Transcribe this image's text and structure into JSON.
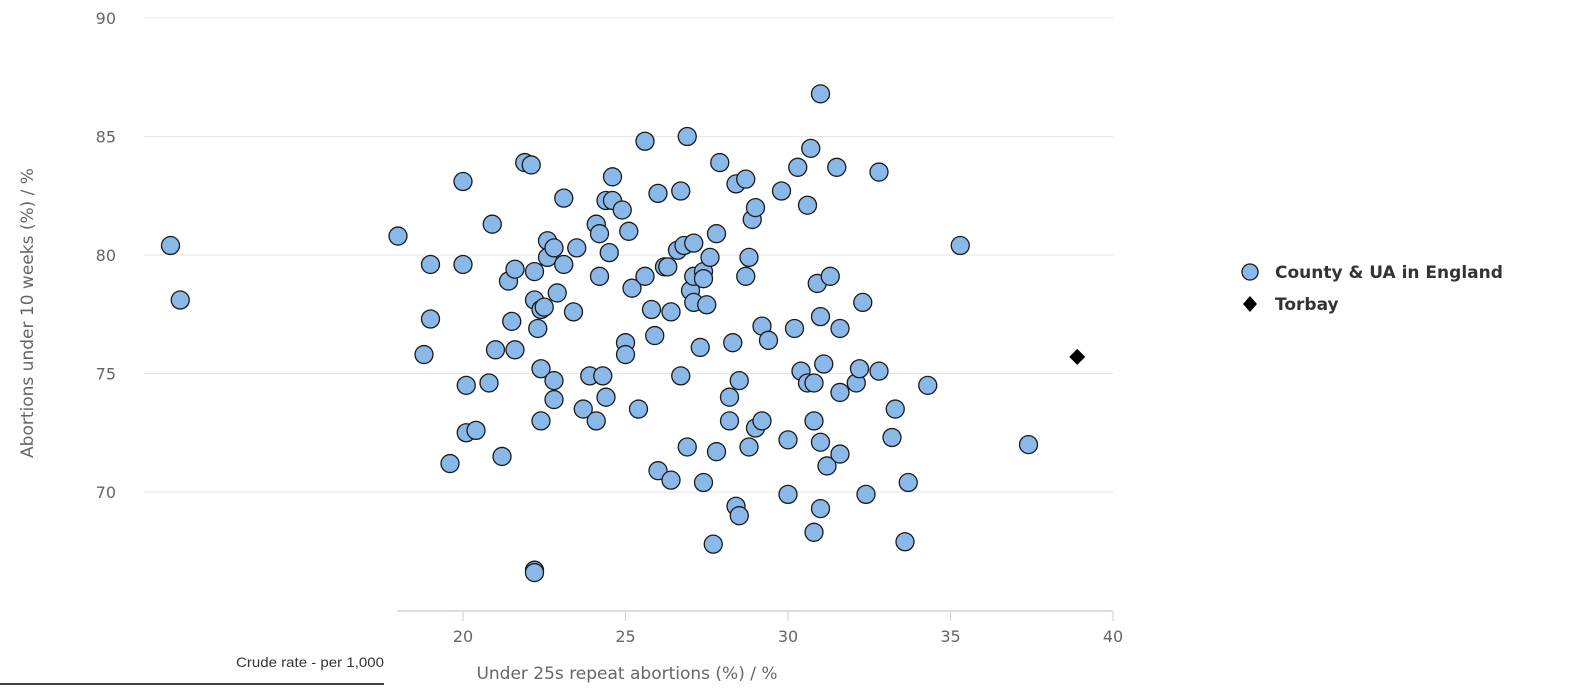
{
  "chart_data": {
    "type": "scatter",
    "title": "",
    "xlabel": "Under 25s repeat abortions (%) / %",
    "ylabel": "Abortions under 10 weeks (%) / %",
    "footnote": "Crude rate - per 1,000",
    "xlim": [
      8,
      40
    ],
    "ylim": [
      65,
      90
    ],
    "x_ticks": [
      "20",
      "25",
      "30",
      "35",
      "40"
    ],
    "y_ticks": [
      "70",
      "75",
      "80",
      "85",
      "90"
    ],
    "grid": "horizontal",
    "legend_position": "right",
    "colors": {
      "county": "#8ab8e8",
      "county_stroke": "#1a1a1a",
      "torbay": "#000000",
      "grid": "#e6e6e6",
      "axis": "#ccd6eb"
    },
    "series": [
      {
        "name": "County & UA in England",
        "marker": "circle",
        "points": [
          [
            11.0,
            80.4
          ],
          [
            11.3,
            78.1
          ],
          [
            18.0,
            80.8
          ],
          [
            18.8,
            75.8
          ],
          [
            19.0,
            77.3
          ],
          [
            19.0,
            79.6
          ],
          [
            19.6,
            71.2
          ],
          [
            20.0,
            83.1
          ],
          [
            20.0,
            79.6
          ],
          [
            20.1,
            72.5
          ],
          [
            20.1,
            74.5
          ],
          [
            20.4,
            72.6
          ],
          [
            20.8,
            74.6
          ],
          [
            20.9,
            81.3
          ],
          [
            21.0,
            76.0
          ],
          [
            21.2,
            71.5
          ],
          [
            21.4,
            78.9
          ],
          [
            21.5,
            77.2
          ],
          [
            21.6,
            76.0
          ],
          [
            21.6,
            79.4
          ],
          [
            21.9,
            83.9
          ],
          [
            22.1,
            83.8
          ],
          [
            22.2,
            78.1
          ],
          [
            22.2,
            79.3
          ],
          [
            22.3,
            76.9
          ],
          [
            22.4,
            77.7
          ],
          [
            22.4,
            73.0
          ],
          [
            22.4,
            75.2
          ],
          [
            22.5,
            77.8
          ],
          [
            22.6,
            80.6
          ],
          [
            22.6,
            79.9
          ],
          [
            22.8,
            80.3
          ],
          [
            22.8,
            74.7
          ],
          [
            22.8,
            73.9
          ],
          [
            22.9,
            78.4
          ],
          [
            23.1,
            79.6
          ],
          [
            23.1,
            82.4
          ],
          [
            23.4,
            77.6
          ],
          [
            23.5,
            80.3
          ],
          [
            23.7,
            73.5
          ],
          [
            23.9,
            74.9
          ],
          [
            24.1,
            81.3
          ],
          [
            24.1,
            73.0
          ],
          [
            24.2,
            80.9
          ],
          [
            24.2,
            79.1
          ],
          [
            24.3,
            74.9
          ],
          [
            24.4,
            74.0
          ],
          [
            24.4,
            82.3
          ],
          [
            24.5,
            80.1
          ],
          [
            24.6,
            83.3
          ],
          [
            24.6,
            82.3
          ],
          [
            24.9,
            81.9
          ],
          [
            25.0,
            76.3
          ],
          [
            25.0,
            75.8
          ],
          [
            25.1,
            81.0
          ],
          [
            25.2,
            78.6
          ],
          [
            25.4,
            73.5
          ],
          [
            25.6,
            79.1
          ],
          [
            25.6,
            84.8
          ],
          [
            25.8,
            77.7
          ],
          [
            25.9,
            76.6
          ],
          [
            26.0,
            82.6
          ],
          [
            26.0,
            70.9
          ],
          [
            26.2,
            79.5
          ],
          [
            26.3,
            79.5
          ],
          [
            26.4,
            77.6
          ],
          [
            26.4,
            70.5
          ],
          [
            26.6,
            80.2
          ],
          [
            26.7,
            82.7
          ],
          [
            26.7,
            74.9
          ],
          [
            26.8,
            80.4
          ],
          [
            26.9,
            71.9
          ],
          [
            26.9,
            85.0
          ],
          [
            27.0,
            78.5
          ],
          [
            27.1,
            80.5
          ],
          [
            27.1,
            78.0
          ],
          [
            27.1,
            79.1
          ],
          [
            27.3,
            76.1
          ],
          [
            27.4,
            70.4
          ],
          [
            27.4,
            79.3
          ],
          [
            27.4,
            79.0
          ],
          [
            27.5,
            77.9
          ],
          [
            27.6,
            79.9
          ],
          [
            27.7,
            67.8
          ],
          [
            27.8,
            80.9
          ],
          [
            27.8,
            71.7
          ],
          [
            27.9,
            83.9
          ],
          [
            28.2,
            73.0
          ],
          [
            28.2,
            74.0
          ],
          [
            28.3,
            76.3
          ],
          [
            28.4,
            69.4
          ],
          [
            28.4,
            83.0
          ],
          [
            28.5,
            74.7
          ],
          [
            28.5,
            69.0
          ],
          [
            28.7,
            79.1
          ],
          [
            28.7,
            83.2
          ],
          [
            28.8,
            71.9
          ],
          [
            28.8,
            79.9
          ],
          [
            28.9,
            81.5
          ],
          [
            29.0,
            82.0
          ],
          [
            29.0,
            72.7
          ],
          [
            29.2,
            77.0
          ],
          [
            29.2,
            73.0
          ],
          [
            29.4,
            76.4
          ],
          [
            29.8,
            82.7
          ],
          [
            30.0,
            72.2
          ],
          [
            30.0,
            69.9
          ],
          [
            30.2,
            76.9
          ],
          [
            30.3,
            83.7
          ],
          [
            30.4,
            75.1
          ],
          [
            30.6,
            82.1
          ],
          [
            30.6,
            74.6
          ],
          [
            30.7,
            84.5
          ],
          [
            30.8,
            73.0
          ],
          [
            30.8,
            74.6
          ],
          [
            30.8,
            68.3
          ],
          [
            30.9,
            78.8
          ],
          [
            31.0,
            86.8
          ],
          [
            31.0,
            77.4
          ],
          [
            31.0,
            72.1
          ],
          [
            31.0,
            69.3
          ],
          [
            31.1,
            75.4
          ],
          [
            31.2,
            71.1
          ],
          [
            31.3,
            79.1
          ],
          [
            31.5,
            83.7
          ],
          [
            31.6,
            71.6
          ],
          [
            31.6,
            76.9
          ],
          [
            31.6,
            74.2
          ],
          [
            32.1,
            74.6
          ],
          [
            32.2,
            75.2
          ],
          [
            32.3,
            78.0
          ],
          [
            32.4,
            69.9
          ],
          [
            32.8,
            83.5
          ],
          [
            32.8,
            75.1
          ],
          [
            33.2,
            72.3
          ],
          [
            33.3,
            73.5
          ],
          [
            33.6,
            67.9
          ],
          [
            33.7,
            70.4
          ],
          [
            34.3,
            74.5
          ],
          [
            35.3,
            80.4
          ],
          [
            37.4,
            72.0
          ],
          [
            22.2,
            66.7
          ],
          [
            22.2,
            66.6
          ]
        ]
      },
      {
        "name": "Torbay",
        "marker": "diamond",
        "points": [
          [
            38.9,
            75.7
          ]
        ]
      }
    ]
  }
}
